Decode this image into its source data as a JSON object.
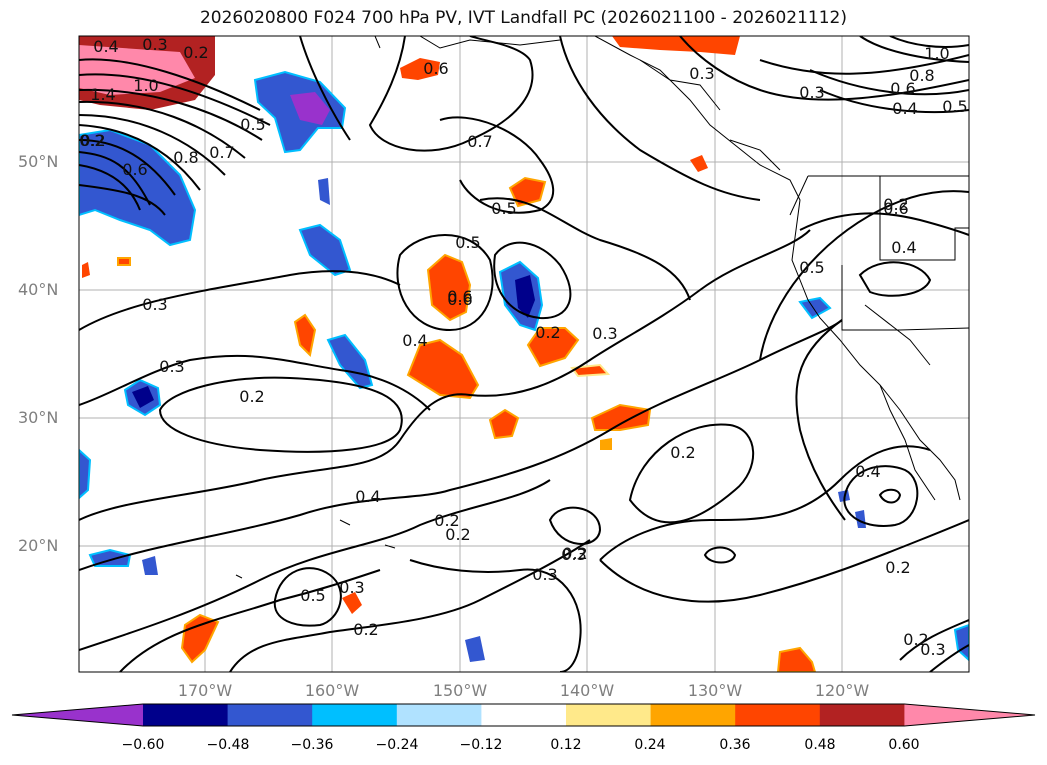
{
  "title": "2026020800 F024 700 hPa PV, IVT Landfall PC (2026021100 - 2026021112)",
  "axes": {
    "lat_labels": [
      "50°N",
      "40°N",
      "30°N",
      "20°N"
    ],
    "lon_labels": [
      "170°W",
      "160°W",
      "150°W",
      "140°W",
      "130°W",
      "120°W"
    ]
  },
  "contour_labels": [
    "0.4",
    "0.3",
    "0.2",
    "1.4",
    "1.0",
    "0.5",
    "0.8",
    "0.6",
    "0.7",
    "0.2",
    "0.7",
    "0.5",
    "0.5",
    "0.6",
    "0.6",
    "0.3",
    "0.3",
    "1.0",
    "0.8",
    "0.6",
    "0.5",
    "0.4",
    "0.5",
    "0.4",
    "0.3",
    "0.3",
    "0.4",
    "0.2",
    "0.3",
    "0.2",
    "0.3",
    "0.2",
    "0.2",
    "0.2",
    "0.4",
    "0.2",
    "0.4",
    "0.5",
    "0.3",
    "0.2",
    "0.3",
    "0.2",
    "0.2",
    "0.2",
    "0.2",
    "0.3",
    "0.6",
    "0.6"
  ],
  "colorbar": {
    "ticks": [
      "−0.60",
      "−0.48",
      "−0.36",
      "−0.24",
      "−0.12",
      "0.12",
      "0.24",
      "0.36",
      "0.48",
      "0.60"
    ],
    "colors": [
      "#9932cc",
      "#00008b",
      "#3357d0",
      "#00bfff",
      "#b0e2ff",
      "#ffffff",
      "#ffe98a",
      "#ffa500",
      "#ff4500",
      "#b22222",
      "#ff88aa"
    ]
  }
}
